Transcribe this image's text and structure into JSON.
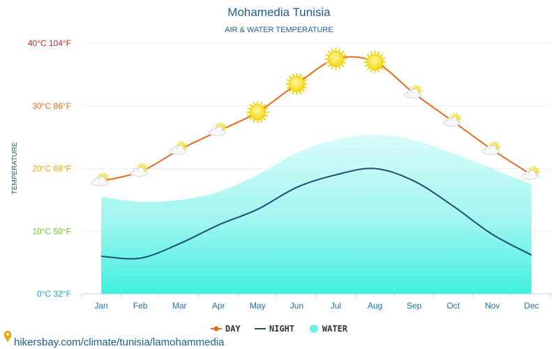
{
  "chart_data": {
    "type": "line",
    "title": "Mohamedia Tunisia",
    "subtitle": "AIR & WATER TEMPERATURE",
    "ylabel": "TEMPERATURE",
    "ylim": [
      0,
      40
    ],
    "categories": [
      "Jan",
      "Feb",
      "Mar",
      "Apr",
      "May",
      "Jun",
      "Jul",
      "Aug",
      "Sep",
      "Oct",
      "Nov",
      "Dec"
    ],
    "y_ticks": [
      {
        "value": 0,
        "label": "0°C 32°F",
        "color": "#1e9fd6"
      },
      {
        "value": 10,
        "label": "10°C 50°F",
        "color": "#6fc12a"
      },
      {
        "value": 20,
        "label": "20°C 68°F",
        "color": "#e8a70c"
      },
      {
        "value": 30,
        "label": "30°C 86°F",
        "color": "#e56b1f"
      },
      {
        "value": 40,
        "label": "40°C 104°F",
        "color": "#d62020"
      }
    ],
    "series": [
      {
        "name": "DAY",
        "color": "#e86a1f",
        "values": [
          18,
          19.5,
          23,
          26,
          29,
          33.5,
          37.5,
          37,
          32,
          27.5,
          23,
          19
        ]
      },
      {
        "name": "NIGHT",
        "color": "#1e4d74",
        "values": [
          6,
          5.7,
          8,
          11,
          13.5,
          17,
          19,
          20,
          18,
          14,
          9.5,
          6.2
        ]
      },
      {
        "name": "WATER",
        "color": "#6ff0e6",
        "values": [
          15.5,
          14.7,
          15,
          16.3,
          19,
          22.5,
          24.6,
          25.4,
          24.5,
          22.5,
          20,
          17.5
        ]
      }
    ],
    "day_icons": [
      "partly-cloudy-icon",
      "partly-cloudy-icon",
      "partly-cloudy-icon",
      "partly-cloudy-icon",
      "sun-icon",
      "sun-icon",
      "sun-icon",
      "sun-icon",
      "partly-cloudy-icon",
      "partly-cloudy-icon",
      "partly-cloudy-icon",
      "partly-cloudy-icon"
    ],
    "grid": true,
    "legend_position": "bottom-center"
  },
  "footer": {
    "icon": "location-pin-icon",
    "url_text": "hikersbay.com/climate/tunisia/lamohammedia"
  }
}
